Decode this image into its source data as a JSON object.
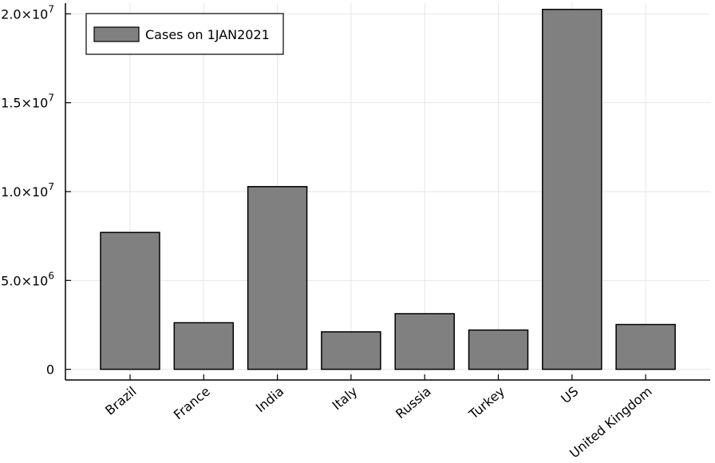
{
  "chart_data": {
    "type": "bar",
    "categories": [
      "Brazil",
      "France",
      "India",
      "Italy",
      "Russia",
      "Turkey",
      "US",
      "United Kingdom"
    ],
    "series": [
      {
        "name": "Cases on 1JAN2021",
        "values": [
          7700000,
          2620000,
          10280000,
          2110000,
          3130000,
          2210000,
          20250000,
          2520000
        ],
        "color": "#808080"
      }
    ],
    "yticks": [
      {
        "value": 0,
        "label": "0"
      },
      {
        "value": 5000000,
        "mantissa": "5.0×10",
        "exp": "6"
      },
      {
        "value": 10000000,
        "mantissa": "1.0×10",
        "exp": "7"
      },
      {
        "value": 15000000,
        "mantissa": "1.5×10",
        "exp": "7"
      },
      {
        "value": 20000000,
        "mantissa": "2.0×10",
        "exp": "7"
      }
    ],
    "ylim": [
      -600000,
      20600000
    ],
    "grid": true,
    "legend_position": "top-left",
    "title": "",
    "xlabel": "",
    "ylabel": ""
  }
}
